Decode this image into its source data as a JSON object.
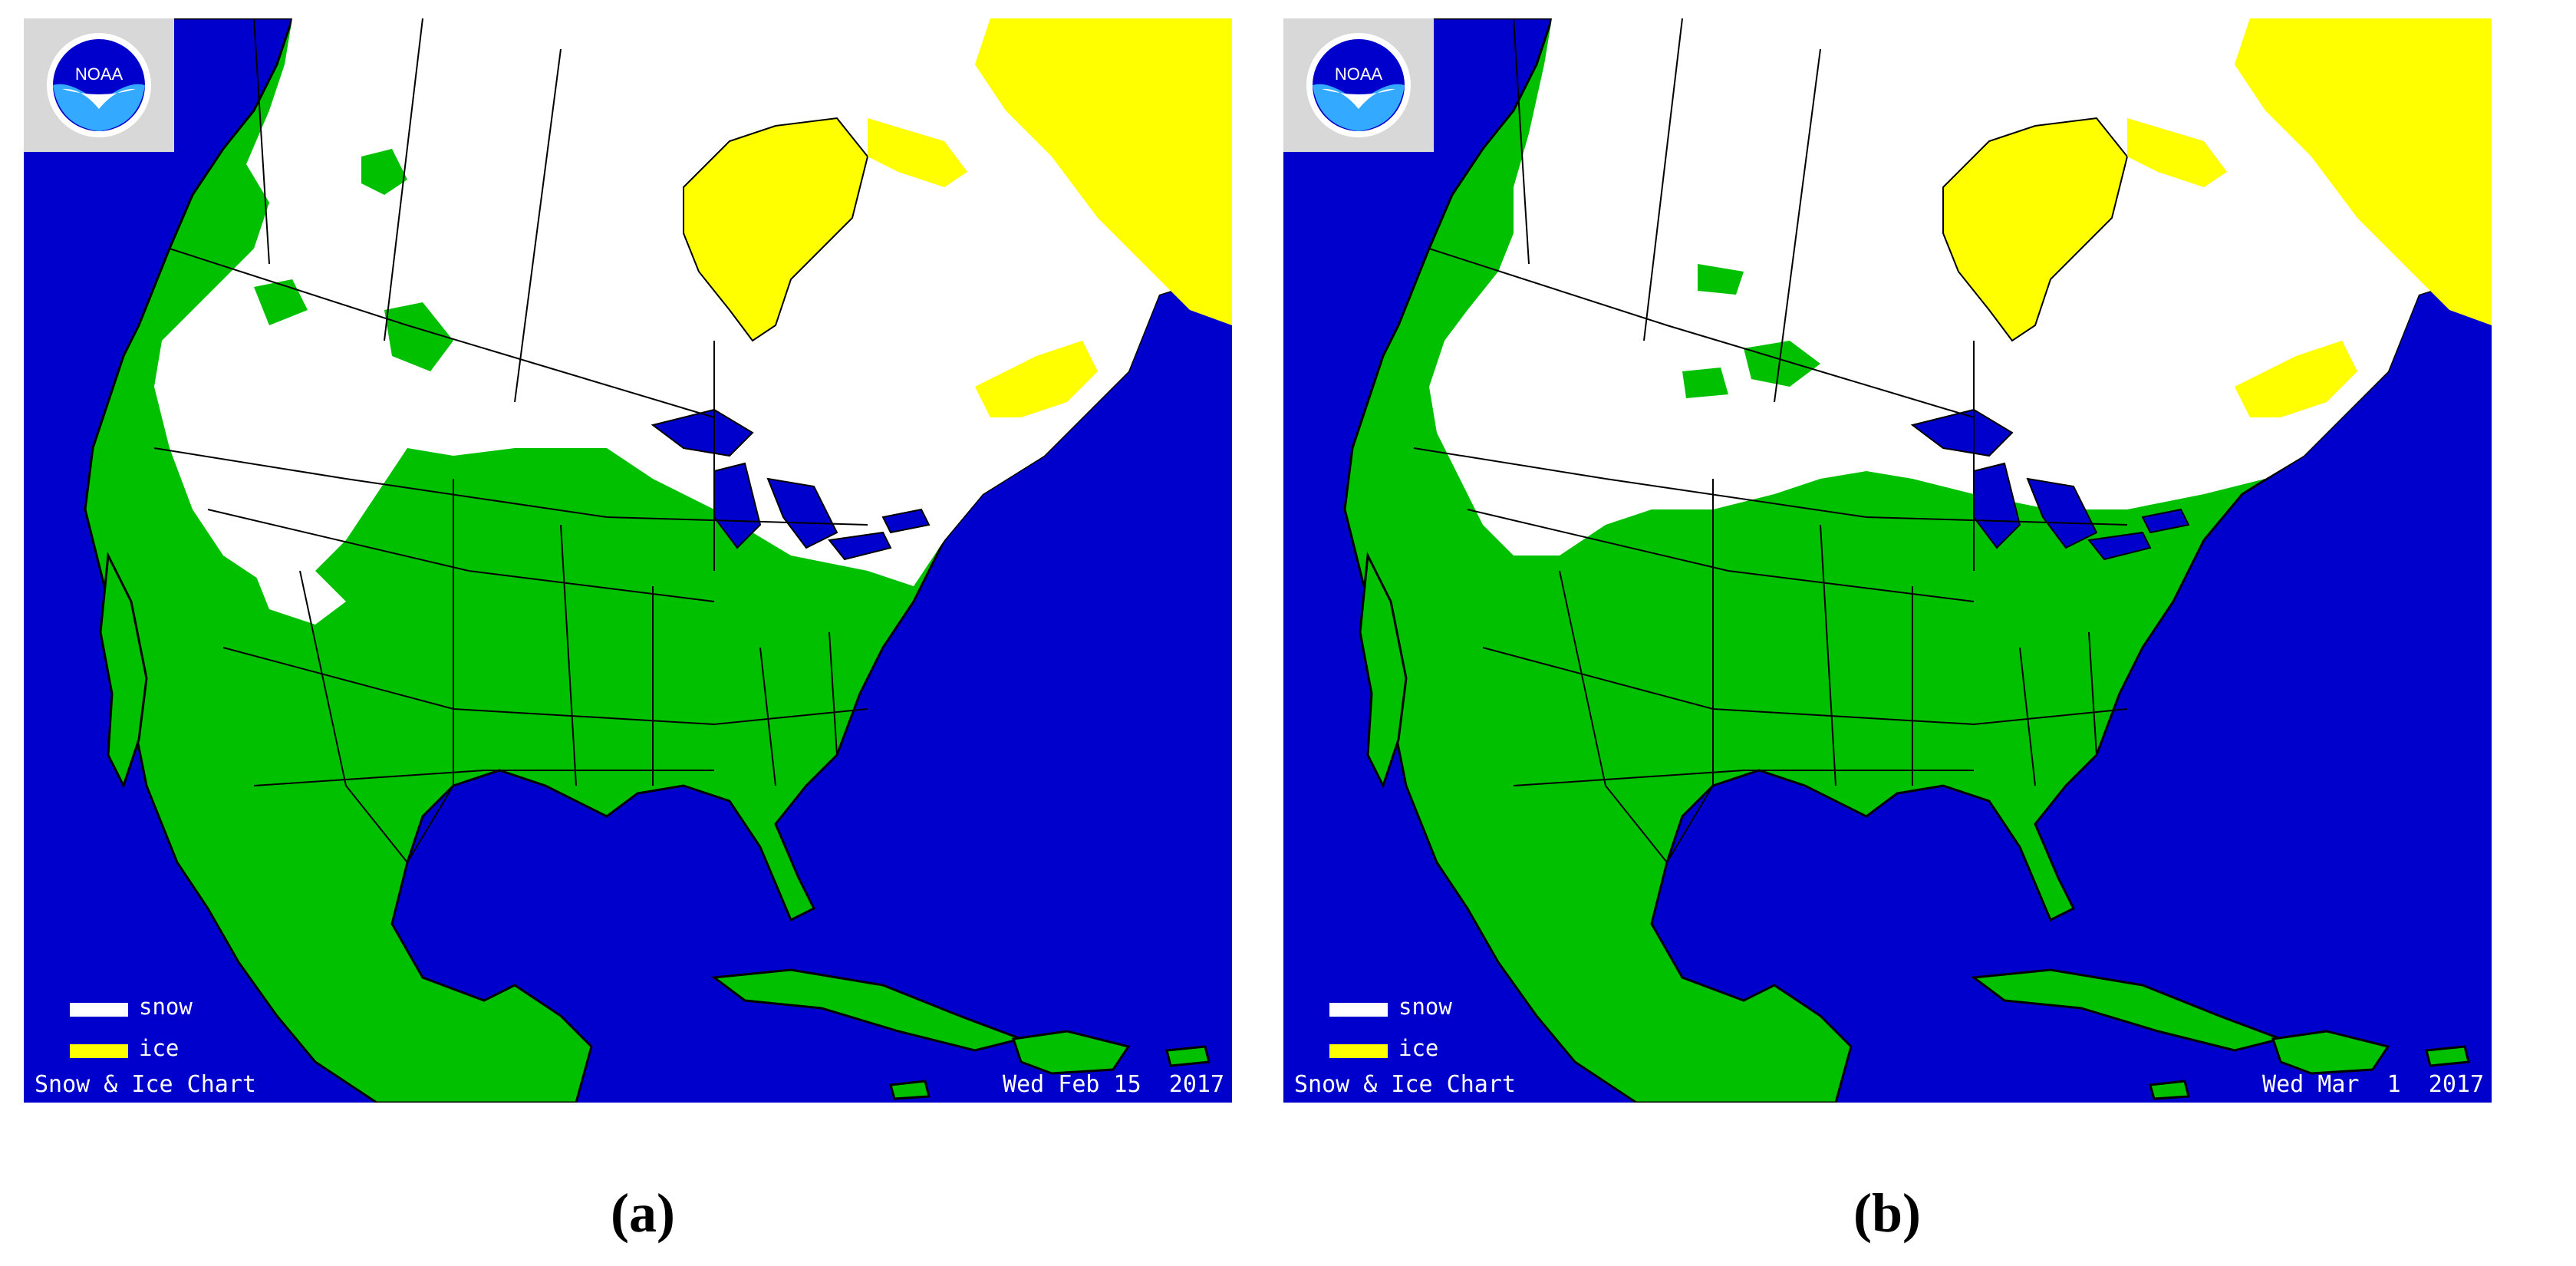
{
  "colors": {
    "ocean": "#0000cc",
    "land": "#00c000",
    "snow": "#ffffff",
    "ice": "#ffff00",
    "border": "#000000",
    "logo_bg": "#d8d8d8"
  },
  "logo": {
    "text": "NOAA",
    "icon": "noaa-logo-icon"
  },
  "legend": {
    "snow_label": "snow",
    "ice_label": "ice"
  },
  "panels": [
    {
      "caption": "(a)",
      "chart_title": "Snow & Ice Chart",
      "date": "Wed Feb 15  2017"
    },
    {
      "caption": "(b)",
      "chart_title": "Snow & Ice Chart",
      "date": "Wed Mar  1  2017"
    }
  ]
}
